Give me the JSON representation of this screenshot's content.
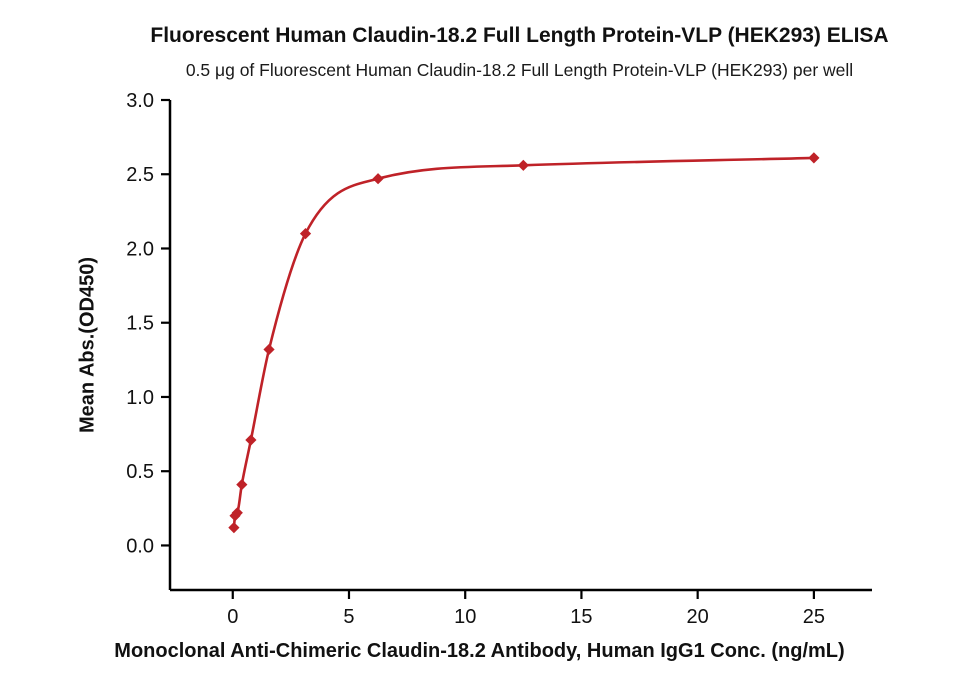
{
  "chart_data": {
    "type": "scatter",
    "title": "Fluorescent Human Claudin-18.2 Full Length Protein-VLP (HEK293) ELISA",
    "subtitle": "0.5 μg of Fluorescent Human Claudin-18.2 Full Length Protein-VLP (HEK293) per well",
    "xlabel": "Monoclonal Anti-Chimeric Claudin-18.2 Antibody, Human IgG1 Conc. (ng/mL)",
    "ylabel": "Mean Abs.(OD450)",
    "xlim": [
      -2.7,
      27.5
    ],
    "ylim": [
      -0.3,
      3.0
    ],
    "x_ticks": [
      "0",
      "5",
      "10",
      "15",
      "20",
      "25"
    ],
    "y_ticks": [
      "0.0",
      "0.5",
      "1.0",
      "1.5",
      "2.0",
      "2.5",
      "3.0"
    ],
    "grid": false,
    "legend": "none",
    "series": [
      {
        "name": "Anti-Chimeric Claudin-18.2 Antibody binding (4PL fit)",
        "color": "#bf2228",
        "points": [
          [
            0.049,
            0.12
          ],
          [
            0.098,
            0.2
          ],
          [
            0.195,
            0.22
          ],
          [
            0.39,
            0.41
          ],
          [
            0.78,
            0.71
          ],
          [
            1.56,
            1.32
          ],
          [
            3.13,
            2.1
          ],
          [
            6.25,
            2.47
          ],
          [
            12.5,
            2.56
          ],
          [
            25.0,
            2.61
          ]
        ]
      }
    ]
  }
}
